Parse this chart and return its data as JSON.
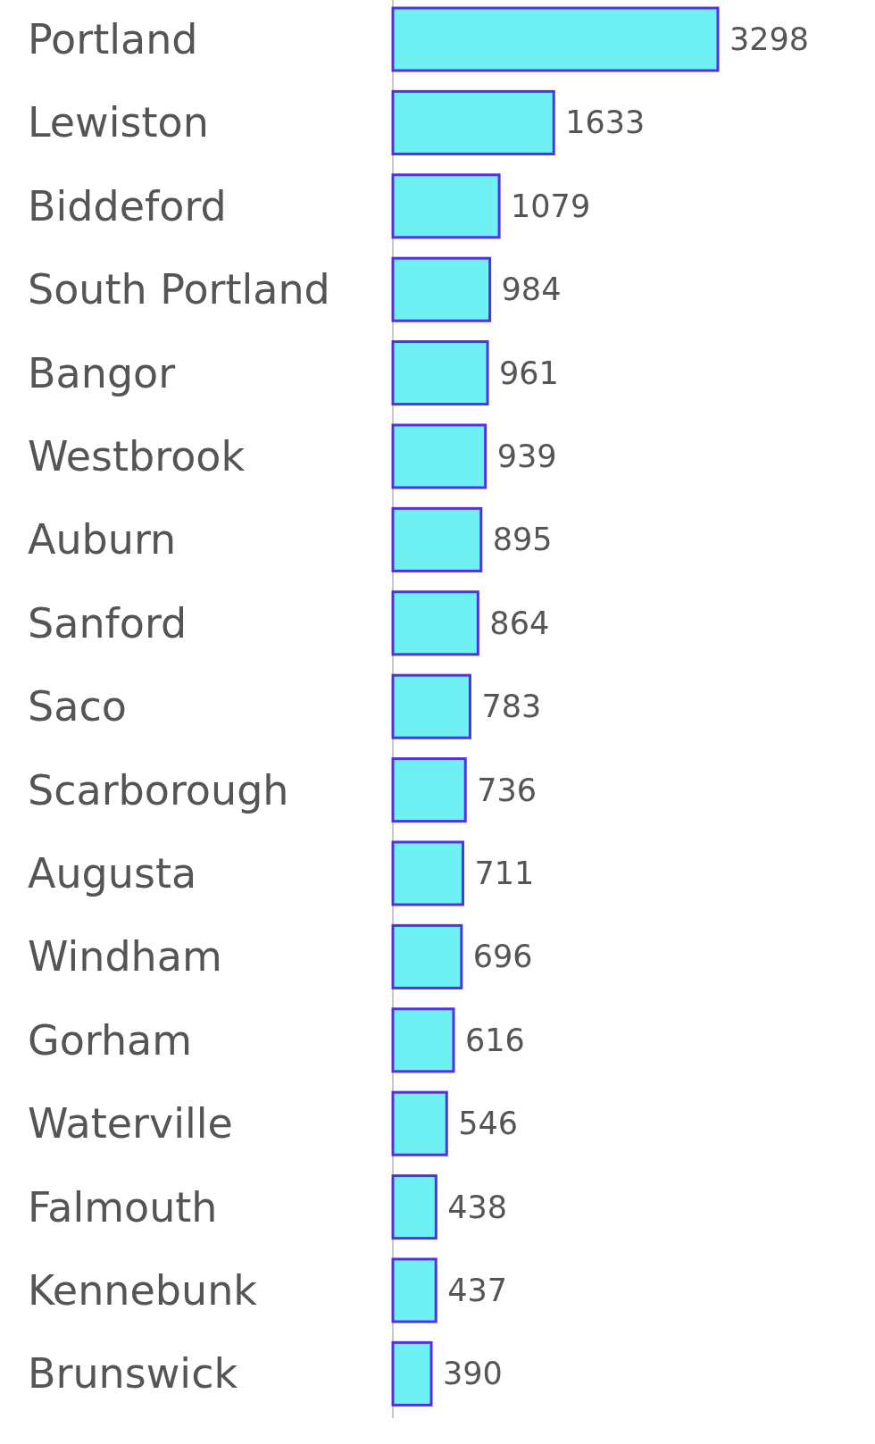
{
  "chart_data": {
    "type": "bar",
    "orientation": "horizontal",
    "categories": [
      "Portland",
      "Lewiston",
      "Biddeford",
      "South Portland",
      "Bangor",
      "Westbrook",
      "Auburn",
      "Sanford",
      "Saco",
      "Scarborough",
      "Augusta",
      "Windham",
      "Gorham",
      "Waterville",
      "Falmouth",
      "Kennebunk",
      "Brunswick"
    ],
    "values": [
      3298,
      1633,
      1079,
      984,
      961,
      939,
      895,
      864,
      783,
      736,
      711,
      696,
      616,
      546,
      438,
      437,
      390
    ],
    "color": "#6ff1f3",
    "data_labels": true,
    "tick_labels": "y"
  }
}
